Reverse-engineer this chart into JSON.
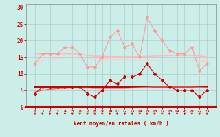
{
  "background_color": "#cceee8",
  "grid_color": "#aacccc",
  "xlabel": "Vent moyen/en rafales ( km/h )",
  "hours": [
    0,
    1,
    2,
    3,
    4,
    5,
    6,
    7,
    8,
    9,
    10,
    11,
    12,
    13,
    14,
    15,
    16,
    17,
    18,
    19,
    20,
    21,
    22,
    23
  ],
  "series": [
    {
      "name": "rafales",
      "color": "#ff9999",
      "linewidth": 0.8,
      "marker": "D",
      "markersize": 2.0,
      "values": [
        13,
        16,
        16,
        16,
        18,
        18,
        16,
        12,
        12,
        15,
        21,
        23,
        18,
        19,
        15,
        27,
        23,
        20,
        17,
        16,
        16,
        18,
        11,
        13
      ]
    },
    {
      "name": "moyenne_line",
      "color": "#ffbbbb",
      "linewidth": 1.3,
      "marker": null,
      "markersize": 0,
      "values": [
        16.0,
        16.0,
        16.0,
        16.0,
        16.0,
        16.0,
        15.8,
        15.5,
        15.3,
        15.2,
        15.1,
        15.1,
        15.1,
        15.1,
        15.1,
        15.2,
        15.3,
        15.4,
        15.5,
        15.5,
        15.5,
        15.5,
        15.3,
        15.0
      ]
    },
    {
      "name": "trend_rafales",
      "color": "#ffcccc",
      "linewidth": 1.0,
      "marker": null,
      "markersize": 0,
      "values": [
        13.5,
        14.0,
        14.3,
        14.5,
        14.7,
        14.8,
        14.8,
        14.7,
        14.6,
        14.5,
        14.4,
        14.3,
        14.3,
        14.2,
        14.1,
        14.1,
        14.1,
        14.1,
        14.1,
        14.1,
        14.1,
        14.1,
        13.9,
        13.7
      ]
    },
    {
      "name": "moyen",
      "color": "#cc0000",
      "linewidth": 0.8,
      "marker": "D",
      "markersize": 2.0,
      "values": [
        4,
        6,
        6,
        6,
        6,
        6,
        6,
        4,
        3,
        5,
        8,
        7,
        9,
        9,
        10,
        13,
        10,
        8,
        6,
        5,
        5,
        5,
        3,
        5
      ]
    },
    {
      "name": "moyen_line",
      "color": "#cc0000",
      "linewidth": 1.5,
      "marker": null,
      "markersize": 0,
      "values": [
        6,
        6,
        6,
        6,
        6,
        6,
        6,
        6,
        6,
        6,
        6,
        6,
        6,
        6,
        6,
        6,
        6,
        6,
        6,
        6,
        6,
        6,
        6,
        6
      ]
    },
    {
      "name": "trend_moyen",
      "color": "#ee6666",
      "linewidth": 1.0,
      "marker": null,
      "markersize": 0,
      "values": [
        4.5,
        5.0,
        5.3,
        5.5,
        5.6,
        5.7,
        5.7,
        5.7,
        5.6,
        5.6,
        5.6,
        5.6,
        5.6,
        5.7,
        5.8,
        5.9,
        6.0,
        6.0,
        6.0,
        6.0,
        6.0,
        6.0,
        5.9,
        5.8
      ]
    }
  ],
  "arrow_color": "#cc0000",
  "ylim": [
    0,
    31
  ],
  "yticks": [
    0,
    5,
    10,
    15,
    20,
    25,
    30
  ],
  "xticks": [
    0,
    1,
    2,
    3,
    4,
    5,
    6,
    7,
    8,
    9,
    10,
    11,
    12,
    13,
    14,
    15,
    16,
    17,
    18,
    19,
    20,
    21,
    22,
    23
  ]
}
